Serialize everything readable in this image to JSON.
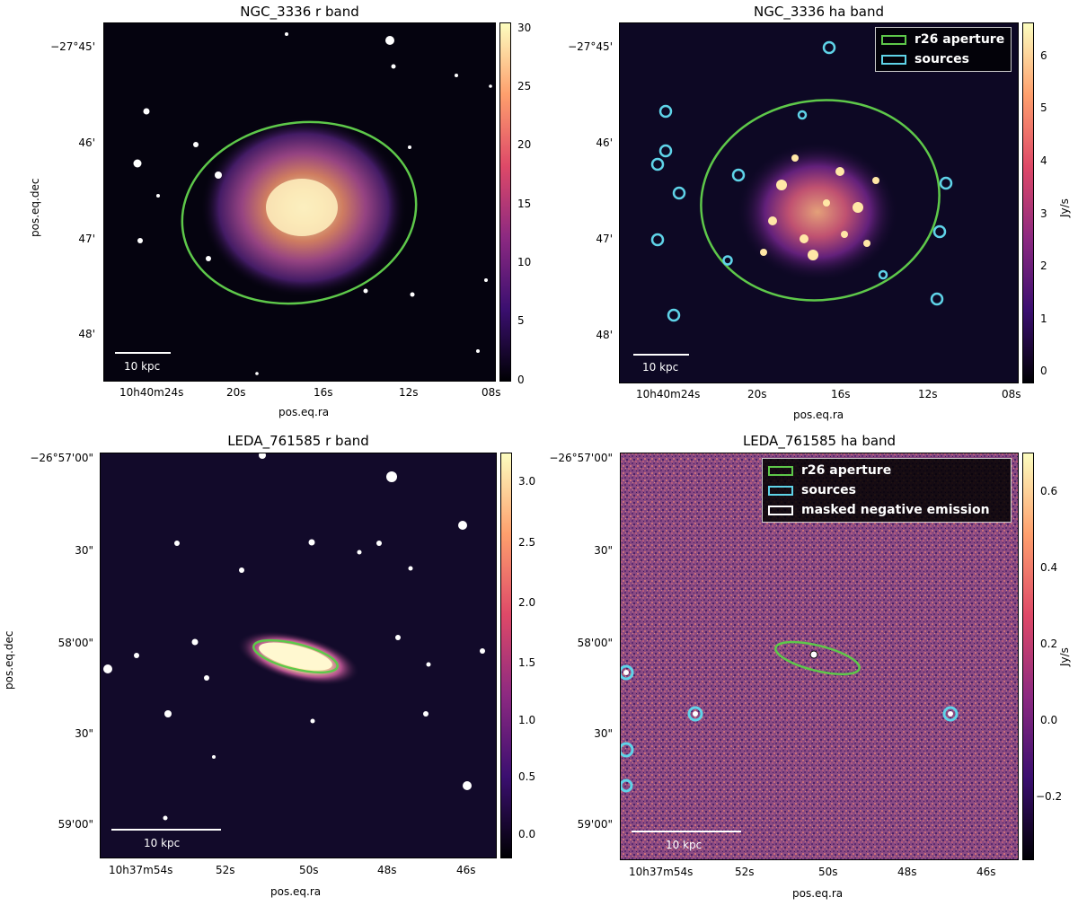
{
  "panels": [
    {
      "title": "NGC_3336 r band",
      "xlabel": "pos.eq.ra",
      "ylabel": "pos.eq.dec",
      "yticks": [
        "−27°45'",
        "46'",
        "47'",
        "48'"
      ],
      "xticks": [
        "10h40m24s",
        "20s",
        "16s",
        "12s",
        "08s"
      ],
      "cbar_ticks": [
        "30",
        "25",
        "20",
        "15",
        "10",
        "5",
        "0"
      ],
      "cbar_label": "",
      "scale": "10 kpc"
    },
    {
      "title": "NGC_3336 ha band",
      "xlabel": "pos.eq.ra",
      "ylabel": "",
      "yticks": [
        "−27°45'",
        "46'",
        "47'",
        "48'"
      ],
      "xticks": [
        "10h40m24s",
        "20s",
        "16s",
        "12s",
        "08s"
      ],
      "cbar_ticks": [
        "6",
        "5",
        "4",
        "3",
        "2",
        "1",
        "0"
      ],
      "cbar_label": "Jy/s",
      "scale": "10 kpc",
      "legend": [
        "r26 aperture",
        "sources"
      ]
    },
    {
      "title": "LEDA_761585 r band",
      "xlabel": "pos.eq.ra",
      "ylabel": "pos.eq.dec",
      "yticks": [
        "−26°57'00\"",
        "30\"",
        "58'00\"",
        "30\"",
        "59'00\""
      ],
      "xticks": [
        "10h37m54s",
        "52s",
        "50s",
        "48s",
        "46s"
      ],
      "cbar_ticks": [
        "3.0",
        "2.5",
        "2.0",
        "1.5",
        "1.0",
        "0.5",
        "0.0"
      ],
      "cbar_label": "",
      "scale": "10 kpc"
    },
    {
      "title": "LEDA_761585 ha band",
      "xlabel": "pos.eq.ra",
      "ylabel": "",
      "yticks": [
        "−26°57'00\"",
        "30\"",
        "58'00\"",
        "30\"",
        "59'00\""
      ],
      "xticks": [
        "10h37m54s",
        "52s",
        "50s",
        "48s",
        "46s"
      ],
      "cbar_ticks": [
        "0.6",
        "0.4",
        "0.2",
        "0.0",
        "−0.2"
      ],
      "cbar_label": "Jy/s",
      "scale": "10 kpc",
      "legend": [
        "r26 aperture",
        "sources",
        "masked negative emission"
      ]
    }
  ],
  "colors": {
    "aperture": "#5ec84a",
    "sources": "#5fd3e8",
    "masked": "#ffffff",
    "background_dark": "#05030f",
    "background_ha2": "#7a3a78"
  },
  "colormap": "magma"
}
